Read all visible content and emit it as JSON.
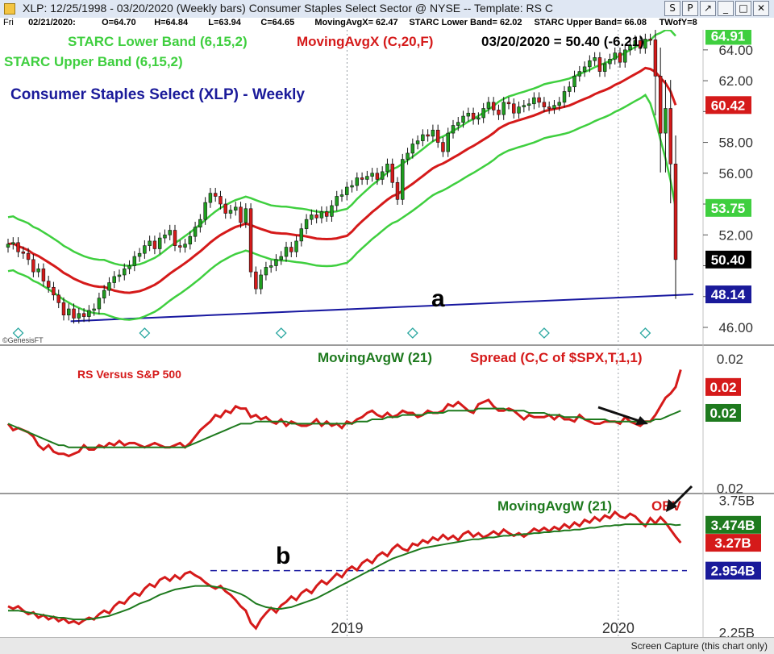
{
  "window": {
    "title": "XLP: 12/25/1998 - 03/20/2020  (Weekly bars)   Consumer Staples Select Sector @ NYSE  --  Template: RS C",
    "buttons": [
      "S",
      "P",
      "↗",
      "_",
      "□",
      "✕"
    ]
  },
  "info_bar": {
    "day": "Fri",
    "date": "02/21/2020:",
    "open": "O=64.70",
    "high": "H=64.84",
    "low": "L=63.94",
    "close": "C=64.65",
    "mavgx": "MovingAvgX= 62.47",
    "starc_lower": "STARC Lower Band= 62.02",
    "starc_upper": "STARC Upper Band= 66.08",
    "twofy": "TWofY=8"
  },
  "status_bar": {
    "caption": "Screen Capture (this chart only)"
  },
  "colors": {
    "price_bull": "#1f9d1f",
    "price_bear": "#d51a1a",
    "starc_band": "#3fcf3f",
    "moving_avg": "#d51a1a",
    "trendline": "#1818a0",
    "rs_line": "#d51a1a",
    "rs_avg": "#1e7a1e",
    "obv_line": "#d51a1a",
    "obv_avg": "#1e7a1e",
    "label_navy": "#1a1a9a",
    "label_green": "#1e7a1e"
  },
  "chart_data": [
    {
      "type": "line",
      "panel": "price",
      "title": "Consumer Staples Select (XLP) - Weekly",
      "legend": [
        {
          "text": "STARC Lower Band (6,15,2)",
          "color": "#3fcf3f"
        },
        {
          "text": "MovingAvgX (C,20,F)",
          "color": "#d51a1a"
        },
        {
          "text": "03/20/2020 = 50.40 (-6.21)",
          "color": "#000000"
        },
        {
          "text": "STARC Upper Band (6,15,2)",
          "color": "#3fcf3f"
        }
      ],
      "annotation": "a",
      "watermark": "©GenesisFT",
      "ylim": [
        44.9,
        65.3
      ],
      "yticks": [
        46.0,
        48.0,
        50.0,
        52.0,
        54.0,
        56.0,
        58.0,
        60.0,
        62.0,
        64.0
      ],
      "ytick_labels": [
        "46.00",
        "",
        "",
        "52.00",
        "",
        "56.00",
        "58.00",
        "",
        "62.00",
        "64.00"
      ],
      "price_labels": [
        {
          "value": 64.91,
          "text": "64.91",
          "bg": "#3fcf3f",
          "fg": "#ffffff"
        },
        {
          "value": 60.42,
          "text": "60.42",
          "bg": "#d51a1a",
          "fg": "#ffffff"
        },
        {
          "value": 53.75,
          "text": "53.75",
          "bg": "#3fcf3f",
          "fg": "#ffffff"
        },
        {
          "value": 50.4,
          "text": "50.40",
          "bg": "#000000",
          "fg": "#ffffff"
        },
        {
          "value": 48.14,
          "text": "48.14",
          "bg": "#1a1a9a",
          "fg": "#ffffff"
        }
      ],
      "x_start": "2017-10-06",
      "x_end": "2020-03-20",
      "closes": [
        51.4,
        51.5,
        50.9,
        50.8,
        50.4,
        49.6,
        49.8,
        49.0,
        48.6,
        48.1,
        47.6,
        46.8,
        47.2,
        46.6,
        46.9,
        46.7,
        47.1,
        47.2,
        47.9,
        48.4,
        48.9,
        49.3,
        49.4,
        49.8,
        50.0,
        50.6,
        50.8,
        51.3,
        51.6,
        51.1,
        51.8,
        52.0,
        52.3,
        51.3,
        51.2,
        51.4,
        51.9,
        52.5,
        53.0,
        54.1,
        54.7,
        54.5,
        54.0,
        53.4,
        53.6,
        53.8,
        52.8,
        53.7,
        49.6,
        48.5,
        49.4,
        49.9,
        50.0,
        50.4,
        50.6,
        51.2,
        50.9,
        51.6,
        52.4,
        53.0,
        53.3,
        53.1,
        53.5,
        53.2,
        53.9,
        54.5,
        54.6,
        55.1,
        55.2,
        55.7,
        55.6,
        55.8,
        56.0,
        55.6,
        56.1,
        56.6,
        55.4,
        54.3,
        56.9,
        57.3,
        57.9,
        58.1,
        58.5,
        58.4,
        58.8,
        58.0,
        57.4,
        58.6,
        59.1,
        59.3,
        59.7,
        59.9,
        59.5,
        59.6,
        60.2,
        60.6,
        60.1,
        59.8,
        60.6,
        60.5,
        59.9,
        60.3,
        60.4,
        60.5,
        60.9,
        60.6,
        60.3,
        60.2,
        60.4,
        60.6,
        61.3,
        61.6,
        62.3,
        62.6,
        62.9,
        63.3,
        63.5,
        62.6,
        63.1,
        63.4,
        63.8,
        63.2,
        64.0,
        64.3,
        64.6,
        64.1,
        64.7,
        64.65,
        62.3,
        58.6,
        60.2,
        56.6,
        50.4
      ],
      "starc_upper_end": 64.91,
      "moving_avg_end": 60.42,
      "starc_lower_end": 53.75,
      "trendline": [
        {
          "date": "2017-12-29",
          "value": 46.4
        },
        {
          "date": "2020-03-20",
          "value": 48.14
        }
      ]
    },
    {
      "type": "line",
      "panel": "relative_strength",
      "label": "RS Versus S&P 500",
      "legend": [
        {
          "text": "MovingAvgW (21)",
          "color": "#1e7a1e"
        },
        {
          "text": "Spread (C,C of $SPX,T,1,1)",
          "color": "#d51a1a"
        }
      ],
      "yticks_text": [
        "0.02",
        "0.02"
      ],
      "value_labels": [
        {
          "text": "0.02",
          "bg": "#d51a1a",
          "fg": "#ffffff"
        },
        {
          "text": "0.02",
          "bg": "#1e7a1e",
          "fg": "#ffffff"
        }
      ],
      "ylim": [
        0.0176,
        0.0244
      ],
      "series": [
        {
          "name": "Spread (C,C of $SPX,T,1,1)",
          "values": [
            0.0208,
            0.0205,
            0.0206,
            0.0205,
            0.0204,
            0.0202,
            0.0198,
            0.0196,
            0.0198,
            0.0195,
            0.0194,
            0.0194,
            0.0193,
            0.0194,
            0.0195,
            0.0198,
            0.0196,
            0.0196,
            0.0198,
            0.0197,
            0.0199,
            0.0198,
            0.02,
            0.0198,
            0.0199,
            0.0199,
            0.0198,
            0.0197,
            0.0198,
            0.0199,
            0.0198,
            0.0197,
            0.0197,
            0.0198,
            0.0199,
            0.0197,
            0.0199,
            0.0202,
            0.0205,
            0.0207,
            0.0209,
            0.0212,
            0.0211,
            0.0214,
            0.0213,
            0.0216,
            0.0215,
            0.0215,
            0.0211,
            0.0212,
            0.021,
            0.0211,
            0.0209,
            0.0208,
            0.021,
            0.0207,
            0.0209,
            0.0208,
            0.0207,
            0.0207,
            0.0208,
            0.021,
            0.0207,
            0.0209,
            0.0207,
            0.0208,
            0.0206,
            0.0209,
            0.0208,
            0.021,
            0.0211,
            0.0213,
            0.0214,
            0.0212,
            0.0211,
            0.0213,
            0.0211,
            0.0212,
            0.0214,
            0.0213,
            0.0213,
            0.0211,
            0.0212,
            0.0214,
            0.0213,
            0.0213,
            0.0214,
            0.0217,
            0.0216,
            0.0218,
            0.0216,
            0.0214,
            0.0213,
            0.0217,
            0.0218,
            0.0219,
            0.0216,
            0.0214,
            0.0214,
            0.0215,
            0.0214,
            0.0212,
            0.021,
            0.0212,
            0.0211,
            0.0211,
            0.0211,
            0.0212,
            0.021,
            0.0212,
            0.021,
            0.021,
            0.0209,
            0.0212,
            0.021,
            0.0209,
            0.0208,
            0.0208,
            0.0209,
            0.0209,
            0.0209,
            0.0208,
            0.0211,
            0.0209,
            0.0208,
            0.0207,
            0.0209,
            0.0209,
            0.0212,
            0.0216,
            0.022,
            0.0222,
            0.0225,
            0.0233
          ]
        },
        {
          "name": "MovingAvgW (21)",
          "values": [
            0.0208,
            0.0207,
            0.0206,
            0.0205,
            0.0204,
            0.0203,
            0.0202,
            0.0201,
            0.02,
            0.0199,
            0.0198,
            0.0198,
            0.0197,
            0.0197,
            0.0197,
            0.0197,
            0.0197,
            0.0197,
            0.0197,
            0.0197,
            0.0197,
            0.0197,
            0.0197,
            0.0197,
            0.0197,
            0.0197,
            0.0197,
            0.0197,
            0.0197,
            0.0197,
            0.0197,
            0.0197,
            0.0197,
            0.0197,
            0.0197,
            0.0197,
            0.0198,
            0.0199,
            0.02,
            0.0201,
            0.0202,
            0.0203,
            0.0204,
            0.0205,
            0.0206,
            0.0207,
            0.0208,
            0.0208,
            0.0208,
            0.0209,
            0.0209,
            0.0209,
            0.0209,
            0.0209,
            0.0209,
            0.0209,
            0.0208,
            0.0208,
            0.0208,
            0.0208,
            0.0208,
            0.0208,
            0.0208,
            0.0208,
            0.0208,
            0.0208,
            0.0208,
            0.0208,
            0.0208,
            0.0209,
            0.0209,
            0.0209,
            0.021,
            0.021,
            0.021,
            0.0211,
            0.0211,
            0.0211,
            0.0212,
            0.0212,
            0.0212,
            0.0212,
            0.0212,
            0.0213,
            0.0213,
            0.0213,
            0.0213,
            0.0214,
            0.0214,
            0.0214,
            0.0214,
            0.0214,
            0.0214,
            0.0215,
            0.0215,
            0.0215,
            0.0215,
            0.0215,
            0.0215,
            0.0214,
            0.0214,
            0.0214,
            0.0214,
            0.0213,
            0.0213,
            0.0213,
            0.0213,
            0.0212,
            0.0212,
            0.0212,
            0.0211,
            0.0211,
            0.0211,
            0.0211,
            0.021,
            0.021,
            0.021,
            0.021,
            0.021,
            0.0209,
            0.0209,
            0.0209,
            0.0209,
            0.0209,
            0.0209,
            0.0209,
            0.0209,
            0.0209,
            0.021,
            0.021,
            0.0211,
            0.0212,
            0.0213,
            0.0214
          ]
        }
      ]
    },
    {
      "type": "line",
      "panel": "obv",
      "legend": [
        {
          "text": "MovingAvgW (21)",
          "color": "#1e7a1e"
        },
        {
          "text": "OBV",
          "color": "#d51a1a"
        }
      ],
      "annotation": "b",
      "ylim": [
        2.2,
        3.82
      ],
      "yticks": [
        2.25,
        3.75
      ],
      "ytick_labels": [
        "2.25B",
        "3.75B"
      ],
      "value_labels": [
        {
          "value": 3.474,
          "text": "3.474B",
          "bg": "#1e7a1e",
          "fg": "#ffffff"
        },
        {
          "value": 3.27,
          "text": "3.27B",
          "bg": "#d51a1a",
          "fg": "#ffffff"
        },
        {
          "value": 2.954,
          "text": "2.954B",
          "bg": "#1a1a9a",
          "fg": "#ffffff"
        }
      ],
      "support_level": 2.954,
      "series": [
        {
          "name": "OBV",
          "values": [
            2.55,
            2.52,
            2.55,
            2.5,
            2.46,
            2.48,
            2.42,
            2.45,
            2.4,
            2.43,
            2.38,
            2.41,
            2.36,
            2.38,
            2.35,
            2.39,
            2.42,
            2.4,
            2.46,
            2.5,
            2.47,
            2.55,
            2.6,
            2.58,
            2.65,
            2.7,
            2.67,
            2.75,
            2.8,
            2.77,
            2.85,
            2.88,
            2.84,
            2.9,
            2.86,
            2.92,
            2.94,
            2.9,
            2.87,
            2.82,
            2.78,
            2.75,
            2.78,
            2.72,
            2.68,
            2.62,
            2.55,
            2.5,
            2.36,
            2.3,
            2.4,
            2.47,
            2.53,
            2.48,
            2.56,
            2.6,
            2.66,
            2.62,
            2.7,
            2.74,
            2.7,
            2.78,
            2.84,
            2.8,
            2.86,
            2.92,
            2.88,
            2.96,
            3.0,
            2.96,
            3.04,
            3.08,
            3.04,
            3.12,
            3.16,
            3.12,
            3.2,
            3.25,
            3.2,
            3.18,
            3.26,
            3.24,
            3.3,
            3.27,
            3.33,
            3.3,
            3.36,
            3.31,
            3.35,
            3.3,
            3.37,
            3.4,
            3.34,
            3.38,
            3.33,
            3.36,
            3.4,
            3.36,
            3.42,
            3.38,
            3.35,
            3.38,
            3.34,
            3.38,
            3.43,
            3.4,
            3.44,
            3.4,
            3.45,
            3.42,
            3.48,
            3.44,
            3.5,
            3.46,
            3.53,
            3.5,
            3.56,
            3.52,
            3.58,
            3.55,
            3.62,
            3.57,
            3.55,
            3.6,
            3.57,
            3.51,
            3.46,
            3.55,
            3.49,
            3.56,
            3.5,
            3.42,
            3.34,
            3.27
          ]
        },
        {
          "name": "MovingAvgW (21)",
          "values": [
            2.5,
            2.5,
            2.5,
            2.49,
            2.48,
            2.47,
            2.46,
            2.45,
            2.44,
            2.43,
            2.42,
            2.42,
            2.41,
            2.4,
            2.4,
            2.4,
            2.4,
            2.41,
            2.42,
            2.43,
            2.44,
            2.46,
            2.48,
            2.5,
            2.52,
            2.55,
            2.58,
            2.6,
            2.62,
            2.65,
            2.68,
            2.7,
            2.72,
            2.74,
            2.75,
            2.76,
            2.77,
            2.78,
            2.78,
            2.78,
            2.78,
            2.77,
            2.76,
            2.75,
            2.73,
            2.71,
            2.69,
            2.66,
            2.62,
            2.58,
            2.56,
            2.54,
            2.53,
            2.52,
            2.52,
            2.53,
            2.54,
            2.56,
            2.58,
            2.6,
            2.62,
            2.64,
            2.67,
            2.7,
            2.73,
            2.76,
            2.79,
            2.82,
            2.85,
            2.88,
            2.91,
            2.94,
            2.97,
            3.0,
            3.03,
            3.06,
            3.09,
            3.11,
            3.13,
            3.15,
            3.17,
            3.19,
            3.21,
            3.22,
            3.23,
            3.24,
            3.25,
            3.26,
            3.27,
            3.28,
            3.29,
            3.3,
            3.31,
            3.31,
            3.32,
            3.33,
            3.33,
            3.34,
            3.35,
            3.35,
            3.36,
            3.36,
            3.37,
            3.37,
            3.38,
            3.38,
            3.39,
            3.39,
            3.4,
            3.4,
            3.41,
            3.41,
            3.42,
            3.42,
            3.43,
            3.44,
            3.44,
            3.45,
            3.46,
            3.46,
            3.47,
            3.47,
            3.48,
            3.48,
            3.48,
            3.48,
            3.48,
            3.48,
            3.48,
            3.48,
            3.48,
            3.48,
            3.47,
            3.474
          ]
        }
      ]
    }
  ],
  "x_axis": {
    "tick_labels": [
      {
        "date": "2019-01-04",
        "text": "2019"
      },
      {
        "date": "2020-01-03",
        "text": "2020"
      }
    ]
  }
}
